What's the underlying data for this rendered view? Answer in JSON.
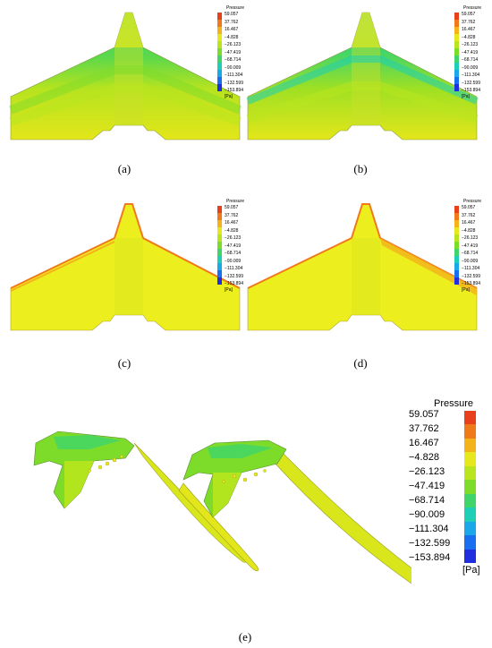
{
  "legend": {
    "title": "Pressure",
    "unit": "[Pa]",
    "ticks": [
      "59.057",
      "37.762",
      "16.467",
      "−4.828",
      "−26.123",
      "−47.419",
      "−68.714",
      "−90.009",
      "−111.304",
      "−132.599",
      "−153.894"
    ],
    "colors": [
      "#e8401c",
      "#f07a1a",
      "#f4b21b",
      "#e6e71c",
      "#b9e51e",
      "#7ddc2a",
      "#3fd56b",
      "#1ecfb5",
      "#1aa8e8",
      "#1a6ef0",
      "#1f2fe0"
    ]
  },
  "captions": {
    "a": "(a)",
    "b": "(b)",
    "c": "(c)",
    "d": "(d)",
    "e": "(e)"
  }
}
